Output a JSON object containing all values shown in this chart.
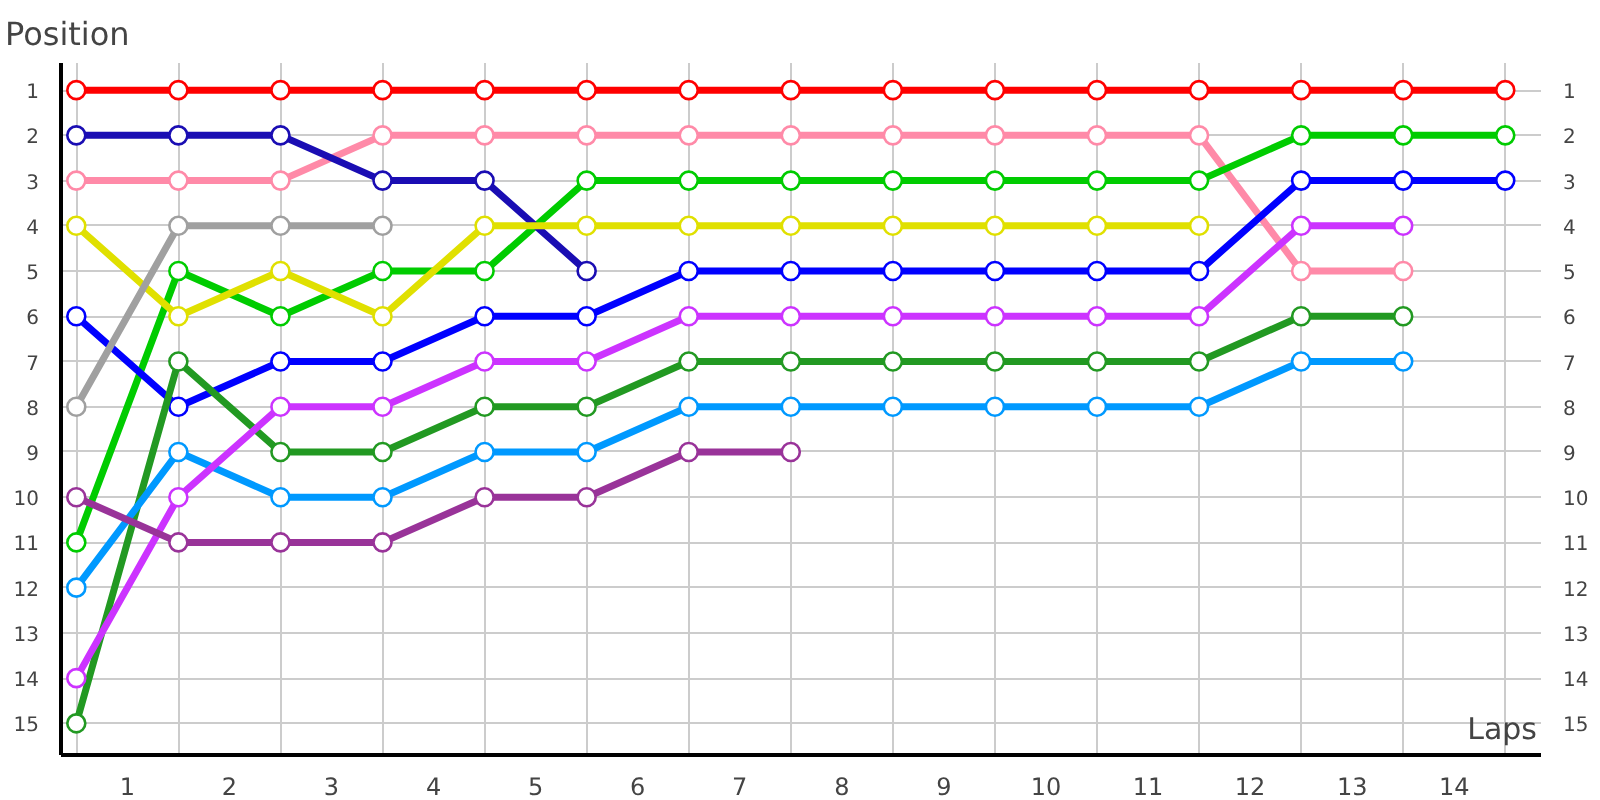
{
  "chart_data": {
    "type": "line",
    "ylabel": "Position",
    "xlabel": "Laps",
    "x": [
      0,
      1,
      2,
      3,
      4,
      5,
      6,
      7,
      8,
      9,
      10,
      11,
      12,
      13,
      14
    ],
    "xlim": [
      -0.15,
      14.35
    ],
    "ylim": [
      15.7,
      0.4
    ],
    "y2lim": [
      15.7,
      0.4
    ],
    "xticks": [
      {
        "value": 0,
        "label": null
      },
      {
        "value": 0.5,
        "label": "1"
      },
      {
        "value": 1,
        "label": null
      },
      {
        "value": 1.5,
        "label": "2"
      },
      {
        "value": 2,
        "label": null
      },
      {
        "value": 2.5,
        "label": "3"
      },
      {
        "value": 3,
        "label": null
      },
      {
        "value": 3.5,
        "label": "4"
      },
      {
        "value": 4,
        "label": null
      },
      {
        "value": 4.5,
        "label": "5"
      },
      {
        "value": 5,
        "label": null
      },
      {
        "value": 5.5,
        "label": "6"
      },
      {
        "value": 6,
        "label": null
      },
      {
        "value": 6.5,
        "label": "7"
      },
      {
        "value": 7,
        "label": null
      },
      {
        "value": 7.5,
        "label": "8"
      },
      {
        "value": 8,
        "label": null
      },
      {
        "value": 8.5,
        "label": "9"
      },
      {
        "value": 9,
        "label": null
      },
      {
        "value": 9.5,
        "label": "10"
      },
      {
        "value": 10,
        "label": null
      },
      {
        "value": 10.5,
        "label": "11"
      },
      {
        "value": 11,
        "label": null
      },
      {
        "value": 11.5,
        "label": "12"
      },
      {
        "value": 12,
        "label": null
      },
      {
        "value": 12.5,
        "label": "13"
      },
      {
        "value": 13,
        "label": null
      },
      {
        "value": 13.5,
        "label": "14"
      },
      {
        "value": 14,
        "label": null
      }
    ],
    "yticks": [
      1,
      2,
      3,
      4,
      5,
      6,
      7,
      8,
      9,
      10,
      11,
      12,
      13,
      14,
      15
    ],
    "y2ticks": [
      1,
      2,
      3,
      4,
      5,
      6,
      7,
      8,
      9,
      10,
      11,
      12,
      13,
      14,
      15
    ],
    "grid": true,
    "marker": "circle",
    "line_style": "solid",
    "series": [
      {
        "color": "#ff0000",
        "values": [
          1,
          1,
          1,
          1,
          1,
          1,
          1,
          1,
          1,
          1,
          1,
          1,
          1,
          1,
          1
        ]
      },
      {
        "color": "#ff8aa8",
        "values": [
          3,
          3,
          3,
          2,
          2,
          2,
          2,
          2,
          2,
          2,
          2,
          2,
          5,
          5,
          null
        ]
      },
      {
        "color": "#00cc00",
        "values": [
          11,
          5,
          6,
          5,
          5,
          3,
          3,
          3,
          3,
          3,
          3,
          3,
          2,
          2,
          2
        ]
      },
      {
        "color": "#1a0db3",
        "values": [
          2,
          2,
          2,
          3,
          3,
          5,
          null,
          null,
          null,
          null,
          null,
          null,
          null,
          null,
          null
        ]
      },
      {
        "color": "#0000ff",
        "values": [
          6,
          8,
          7,
          7,
          6,
          6,
          5,
          5,
          5,
          5,
          5,
          5,
          3,
          3,
          3
        ]
      },
      {
        "color": "#e0e000",
        "values": [
          4,
          6,
          5,
          6,
          4,
          4,
          4,
          4,
          4,
          4,
          4,
          4,
          null,
          null,
          null
        ]
      },
      {
        "color": "#a0a0a0",
        "values": [
          8,
          4,
          4,
          4,
          null,
          null,
          null,
          null,
          null,
          null,
          null,
          null,
          null,
          null,
          null
        ]
      },
      {
        "color": "#229922",
        "values": [
          15,
          7,
          9,
          9,
          8,
          8,
          7,
          7,
          7,
          7,
          7,
          7,
          6,
          6,
          null
        ]
      },
      {
        "color": "#0099ff",
        "values": [
          12,
          9,
          10,
          10,
          9,
          9,
          8,
          8,
          8,
          8,
          8,
          8,
          7,
          7,
          null
        ]
      },
      {
        "color": "#cc33ff",
        "values": [
          14,
          10,
          8,
          8,
          7,
          7,
          6,
          6,
          6,
          6,
          6,
          6,
          4,
          4,
          null
        ]
      },
      {
        "color": "#993399",
        "values": [
          10,
          11,
          11,
          11,
          10,
          10,
          9,
          9,
          null,
          null,
          null,
          null,
          null,
          null,
          null
        ]
      }
    ]
  }
}
